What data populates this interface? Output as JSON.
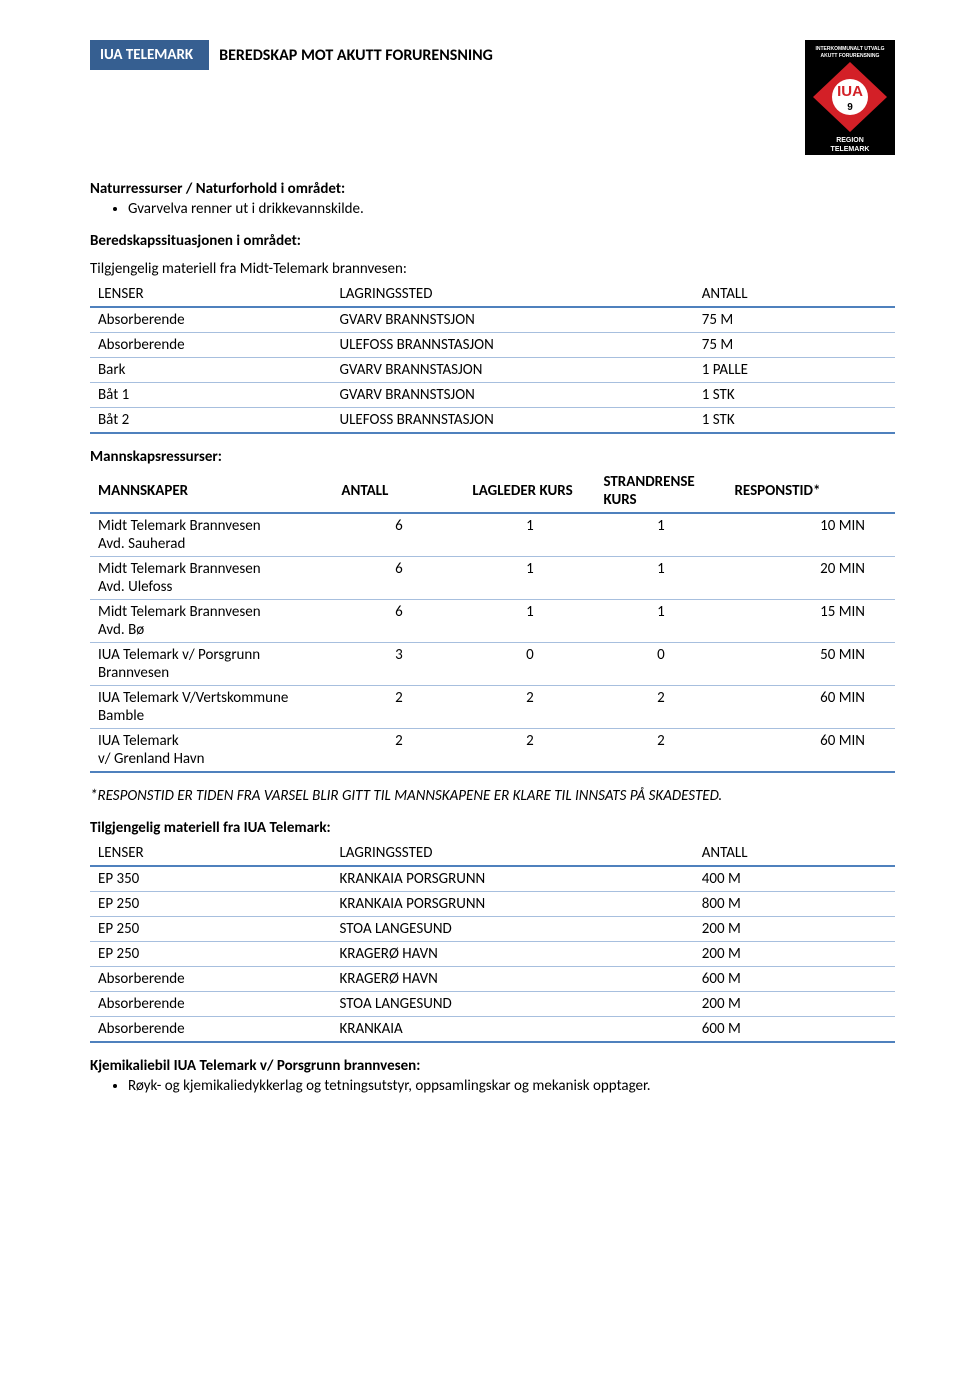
{
  "header": {
    "badge": "IUA TELEMARK",
    "title": "BEREDSKAP MOT AKUTT FORURENSNING",
    "logo_top": "INTERKOMMUNALT UTVALG",
    "logo_top2": "AKUTT FORURENSNING",
    "logo_center": "IUA",
    "logo_num": "9",
    "logo_bottom": "REGION",
    "logo_bottom2": "TELEMARK"
  },
  "nat_heading": "Naturressurser / Naturforhold i området:",
  "nat_items": [
    "Gvarvelva renner ut i drikkevannskilde."
  ],
  "bered_heading": "Beredskapssituasjonen i området:",
  "mat_heading": "Tilgjengelig materiell fra Midt-Telemark brannvesen:",
  "t1": {
    "head": [
      "LENSER",
      "LAGRINGSSTED",
      "ANTALL"
    ],
    "rows": [
      [
        "Absorberende",
        "GVARV BRANNSTSJON",
        "75 M"
      ],
      [
        "Absorberende",
        "ULEFOSS BRANNSTASJON",
        "75 M"
      ],
      [
        "Bark",
        "GVARV BRANNSTASJON",
        "1 PALLE"
      ],
      [
        "Båt 1",
        "GVARV BRANNSTSJON",
        "1 STK"
      ],
      [
        "Båt 2",
        "ULEFOSS BRANNSTASJON",
        "1 STK"
      ]
    ]
  },
  "mann_heading": "Mannskapsressurser:",
  "t2": {
    "head": [
      "MANNSKAPER",
      "ANTALL",
      "LAGLEDER KURS",
      "STRANDRENSE KURS",
      "RESPONSTID*"
    ],
    "rows": [
      [
        "Midt Telemark Brannvesen\nAvd. Sauherad",
        "6",
        "1",
        "1",
        "10 MIN"
      ],
      [
        "Midt Telemark Brannvesen\nAvd. Ulefoss",
        "6",
        "1",
        "1",
        "20 MIN"
      ],
      [
        "Midt Telemark Brannvesen\nAvd. Bø",
        "6",
        "1",
        "1",
        "15 MIN"
      ],
      [
        "IUA Telemark v/ Porsgrunn Brannvesen",
        "3",
        "0",
        "0",
        "50 MIN"
      ],
      [
        "IUA Telemark V/Vertskommune Bamble",
        "2",
        "2",
        "2",
        "60 MIN"
      ],
      [
        "IUA Telemark\nv/ Grenland Havn",
        "2",
        "2",
        "2",
        "60 MIN"
      ]
    ]
  },
  "footnote": "*RESPONSTID ER TIDEN FRA VARSEL BLIR GITT TIL MANNSKAPENE ER KLARE TIL INNSATS PÅ SKADESTED.",
  "iua_heading": "Tilgjengelig materiell fra IUA Telemark:",
  "t3": {
    "head": [
      "LENSER",
      "LAGRINGSSTED",
      "ANTALL"
    ],
    "rows": [
      [
        "EP 350",
        "KRANKAIA PORSGRUNN",
        "400 M"
      ],
      [
        "EP 250",
        "KRANKAIA PORSGRUNN",
        "800 M"
      ],
      [
        "EP 250",
        "STOA LANGESUND",
        "200 M"
      ],
      [
        "EP 250",
        "KRAGERØ HAVN",
        "200 M"
      ],
      [
        "Absorberende",
        "KRAGERØ HAVN",
        "600 M"
      ],
      [
        "Absorberende",
        "STOA LANGESUND",
        "200 M"
      ],
      [
        "Absorberende",
        "KRANKAIA",
        "600 M"
      ]
    ]
  },
  "kjem_heading": "Kjemikaliebil IUA Telemark v/ Porsgrunn brannvesen:",
  "kjem_items": [
    "Røyk- og kjemikaliedykkerlag og tetningsutstyr, oppsamlingskar og mekanisk opptager."
  ]
}
